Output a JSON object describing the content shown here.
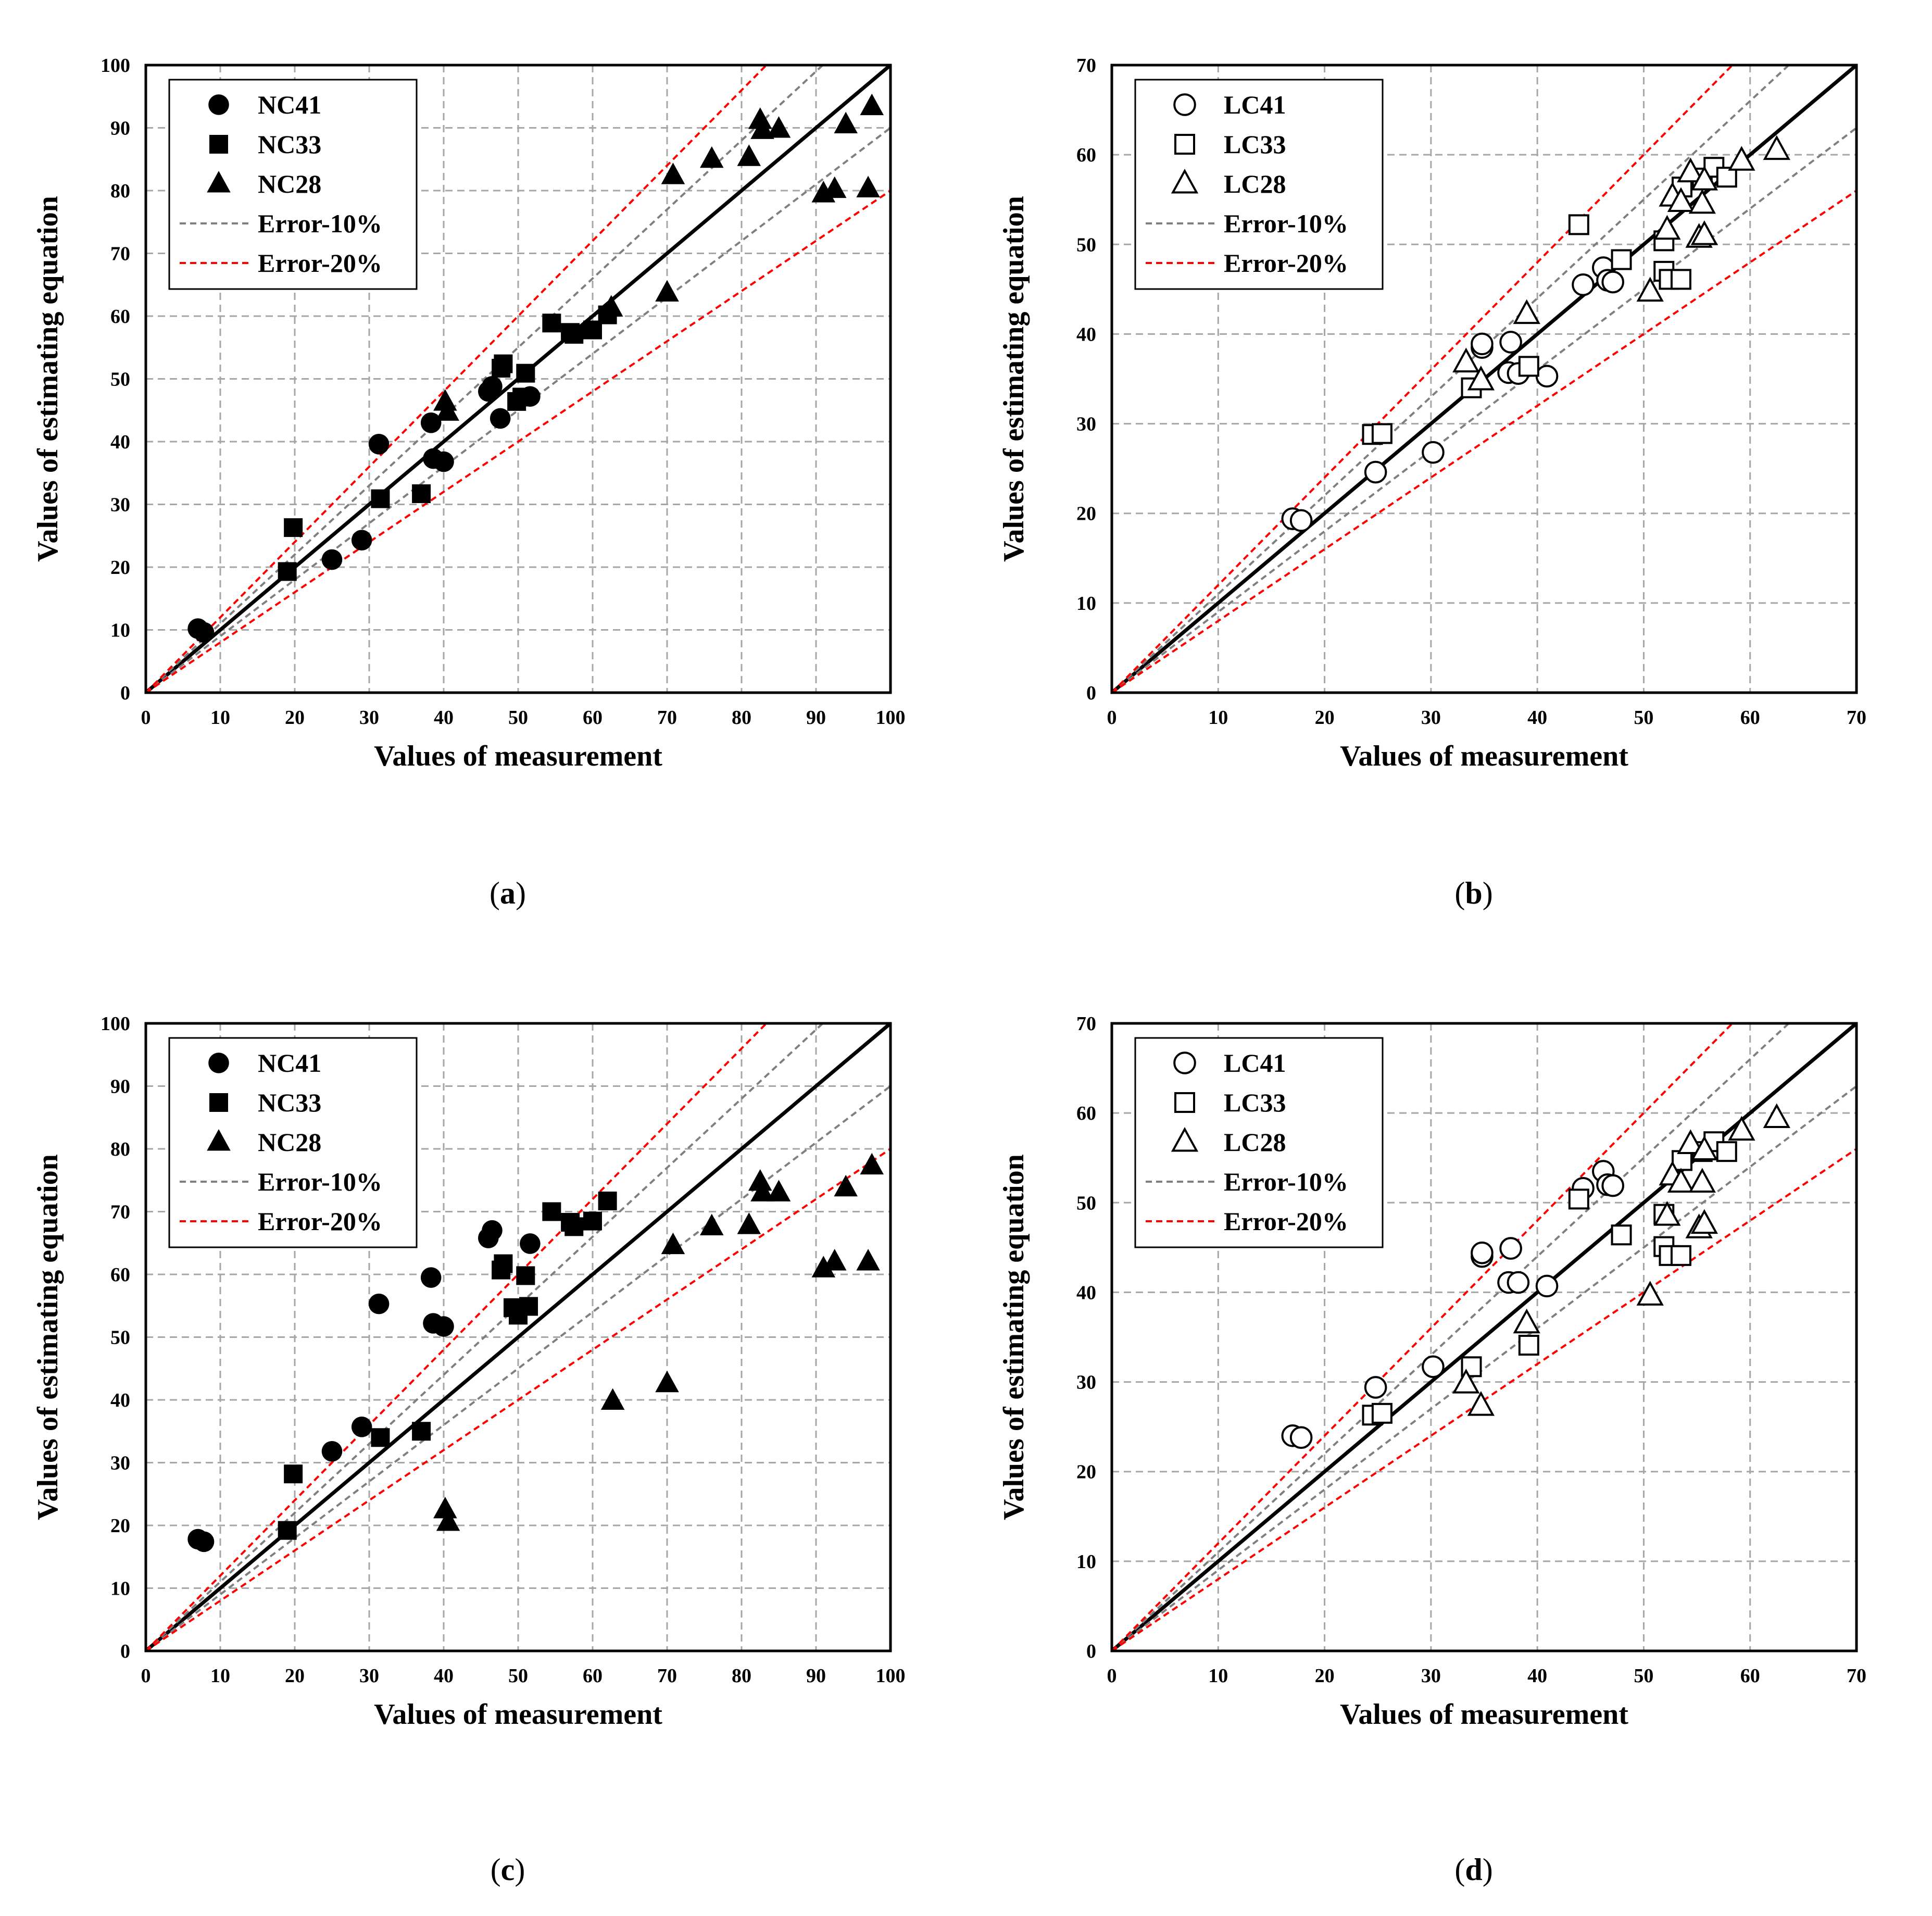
{
  "chart_data": [
    {
      "type": "scatter",
      "panel": "a",
      "caption_open": "(",
      "caption_letter": "a",
      "caption_close": ")",
      "xlabel": "Values of measurement",
      "ylabel": "Values of estimating equation",
      "xlim": [
        0,
        100
      ],
      "ylim": [
        0,
        100
      ],
      "xticks": [
        0,
        10,
        20,
        30,
        40,
        50,
        60,
        70,
        80,
        90,
        100
      ],
      "yticks": [
        0,
        10,
        20,
        30,
        40,
        50,
        60,
        70,
        80,
        90,
        100
      ],
      "grid": true,
      "legend_position": "top-left",
      "reference_lines": [
        {
          "name": "Equality",
          "slope": 1.0,
          "color": "#000000",
          "style": "solid"
        },
        {
          "name": "Error-10%",
          "slopes": [
            1.1,
            0.9
          ],
          "color": "#7f7f7f",
          "style": "dashed"
        },
        {
          "name": "Error-20%",
          "slopes": [
            1.2,
            0.8
          ],
          "color": "#ff0000",
          "style": "dashed"
        }
      ],
      "series": [
        {
          "name": "NC41",
          "marker": "filled-circle",
          "points": [
            [
              7,
              10.2
            ],
            [
              7.8,
              9.6
            ],
            [
              25,
              21.2
            ],
            [
              29,
              24.3
            ],
            [
              31.3,
              39.6
            ],
            [
              38.3,
              43
            ],
            [
              38.6,
              37.3
            ],
            [
              40,
              36.8
            ],
            [
              46,
              48
            ],
            [
              46.5,
              48.8
            ],
            [
              47.6,
              43.7
            ],
            [
              51.6,
              47.2
            ]
          ]
        },
        {
          "name": "NC33",
          "marker": "filled-square",
          "points": [
            [
              19,
              19.3
            ],
            [
              19.8,
              26.3
            ],
            [
              31.5,
              30.9
            ],
            [
              37,
              31.7
            ],
            [
              47.7,
              51.7
            ],
            [
              48,
              52.4
            ],
            [
              49.8,
              46.4
            ],
            [
              51,
              50.9
            ],
            [
              54.5,
              58.9
            ],
            [
              50.5,
              47.1
            ],
            [
              57,
              57.4
            ],
            [
              57.5,
              57.1
            ],
            [
              60,
              57.8
            ],
            [
              62,
              60.2
            ]
          ]
        },
        {
          "name": "NC28",
          "marker": "filled-triangle",
          "points": [
            [
              40.2,
              46.3
            ],
            [
              40.5,
              44.7
            ],
            [
              62.5,
              61.3
            ],
            [
              70,
              63.7
            ],
            [
              70.8,
              82.4
            ],
            [
              76,
              85
            ],
            [
              81,
              85.3
            ],
            [
              82.5,
              91.2
            ],
            [
              82.8,
              89.6
            ],
            [
              85,
              89.8
            ],
            [
              91,
              79.5
            ],
            [
              92.5,
              80.2
            ],
            [
              94,
              90.5
            ],
            [
              97,
              80.3
            ],
            [
              97.5,
              93.4
            ]
          ]
        }
      ]
    },
    {
      "type": "scatter",
      "panel": "b",
      "caption_open": "(",
      "caption_letter": "b",
      "caption_close": ")",
      "xlabel": "Values of measurement",
      "ylabel": "Values of estimating equation",
      "xlim": [
        0,
        70
      ],
      "ylim": [
        0,
        70
      ],
      "xticks": [
        0,
        10,
        20,
        30,
        40,
        50,
        60,
        70
      ],
      "yticks": [
        0,
        10,
        20,
        30,
        40,
        50,
        60,
        70
      ],
      "grid": true,
      "legend_position": "top-left",
      "reference_lines": [
        {
          "name": "Equality",
          "slope": 1.0,
          "color": "#000000",
          "style": "solid"
        },
        {
          "name": "Error-10%",
          "slopes": [
            1.1,
            0.9
          ],
          "color": "#7f7f7f",
          "style": "dashed"
        },
        {
          "name": "Error-20%",
          "slopes": [
            1.2,
            0.8
          ],
          "color": "#ff0000",
          "style": "dashed"
        }
      ],
      "series": [
        {
          "name": "LC41",
          "marker": "open-circle",
          "points": [
            [
              17,
              19.4
            ],
            [
              17.8,
              19.2
            ],
            [
              24.8,
              24.6
            ],
            [
              30.2,
              26.8
            ],
            [
              34.8,
              38.5
            ],
            [
              34.8,
              38.9
            ],
            [
              37.3,
              35.7
            ],
            [
              37.5,
              39.1
            ],
            [
              38.2,
              35.6
            ],
            [
              40.9,
              35.3
            ],
            [
              44.3,
              45.5
            ],
            [
              46.2,
              47.4
            ],
            [
              46.6,
              46
            ],
            [
              47.1,
              45.8
            ]
          ]
        },
        {
          "name": "LC33",
          "marker": "open-square",
          "points": [
            [
              24.5,
              28.8
            ],
            [
              25.4,
              28.9
            ],
            [
              33.8,
              34
            ],
            [
              39.2,
              36.4
            ],
            [
              43.9,
              52.2
            ],
            [
              47.9,
              48.3
            ],
            [
              51.9,
              50.4
            ],
            [
              51.9,
              47
            ],
            [
              52.4,
              46.1
            ],
            [
              53.5,
              46.1
            ],
            [
              53.6,
              56.4
            ],
            [
              55.5,
              57.4
            ],
            [
              56.6,
              58.6
            ],
            [
              57.8,
              57.5
            ]
          ]
        },
        {
          "name": "LC28",
          "marker": "open-triangle",
          "points": [
            [
              33.3,
              36.8
            ],
            [
              34.7,
              34.8
            ],
            [
              39,
              42.2
            ],
            [
              50.6,
              44.7
            ],
            [
              52.2,
              51.6
            ],
            [
              52.7,
              55.3
            ],
            [
              53.5,
              54.7
            ],
            [
              54.4,
              58
            ],
            [
              55.2,
              50.7
            ],
            [
              55.7,
              51
            ],
            [
              55.5,
              54.5
            ],
            [
              55.7,
              57.1
            ],
            [
              59.2,
              59.3
            ],
            [
              62.5,
              60.5
            ]
          ]
        }
      ]
    },
    {
      "type": "scatter",
      "panel": "c",
      "caption_open": "(",
      "caption_letter": "c",
      "caption_close": ")",
      "xlabel": "Values of measurement",
      "ylabel": "Values of estimating equation",
      "xlim": [
        0,
        100
      ],
      "ylim": [
        0,
        100
      ],
      "xticks": [
        0,
        10,
        20,
        30,
        40,
        50,
        60,
        70,
        80,
        90,
        100
      ],
      "yticks": [
        0,
        10,
        20,
        30,
        40,
        50,
        60,
        70,
        80,
        90,
        100
      ],
      "grid": true,
      "legend_position": "top-left",
      "reference_lines": [
        {
          "name": "Equality",
          "slope": 1.0,
          "color": "#000000",
          "style": "solid"
        },
        {
          "name": "Error-10%",
          "slopes": [
            1.1,
            0.9
          ],
          "color": "#7f7f7f",
          "style": "dashed"
        },
        {
          "name": "Error-20%",
          "slopes": [
            1.2,
            0.8
          ],
          "color": "#ff0000",
          "style": "dashed"
        }
      ],
      "series": [
        {
          "name": "NC41",
          "marker": "filled-circle",
          "points": [
            [
              7,
              17.8
            ],
            [
              7.8,
              17.4
            ],
            [
              25,
              31.8
            ],
            [
              29,
              35.7
            ],
            [
              31.3,
              55.3
            ],
            [
              38.3,
              59.5
            ],
            [
              38.6,
              52.2
            ],
            [
              40,
              51.7
            ],
            [
              46,
              65.8
            ],
            [
              46.5,
              67
            ],
            [
              51.6,
              64.9
            ]
          ]
        },
        {
          "name": "NC33",
          "marker": "filled-square",
          "points": [
            [
              19,
              19.2
            ],
            [
              19.8,
              28.2
            ],
            [
              31.5,
              34
            ],
            [
              37,
              35
            ],
            [
              47.7,
              60.7
            ],
            [
              48,
              61.7
            ],
            [
              49.3,
              54.7
            ],
            [
              50,
              53.5
            ],
            [
              51,
              59.8
            ],
            [
              51.4,
              54.9
            ],
            [
              54.5,
              70
            ],
            [
              57,
              68.3
            ],
            [
              57.5,
              67.6
            ],
            [
              60,
              68.5
            ],
            [
              62,
              71.7
            ]
          ]
        },
        {
          "name": "NC28",
          "marker": "filled-triangle",
          "points": [
            [
              40.2,
              22.5
            ],
            [
              40.6,
              20.5
            ],
            [
              62.7,
              39.8
            ],
            [
              70,
              42.6
            ],
            [
              70.8,
              64.6
            ],
            [
              76,
              67.6
            ],
            [
              81,
              67.8
            ],
            [
              82.5,
              74.7
            ],
            [
              82.8,
              73
            ],
            [
              85,
              73
            ],
            [
              91,
              60.9
            ],
            [
              92.5,
              62
            ],
            [
              94,
              73.8
            ],
            [
              97,
              62
            ],
            [
              97.5,
              77.3
            ]
          ]
        }
      ]
    },
    {
      "type": "scatter",
      "panel": "d",
      "caption_open": "(",
      "caption_letter": "d",
      "caption_close": ")",
      "xlabel": "Values of measurement",
      "ylabel": "Values of estimating equation",
      "xlim": [
        0,
        70
      ],
      "ylim": [
        0,
        70
      ],
      "xticks": [
        0,
        10,
        20,
        30,
        40,
        50,
        60,
        70
      ],
      "yticks": [
        0,
        10,
        20,
        30,
        40,
        50,
        60,
        70
      ],
      "grid": true,
      "legend_position": "top-left",
      "reference_lines": [
        {
          "name": "Equality",
          "slope": 1.0,
          "color": "#000000",
          "style": "solid"
        },
        {
          "name": "Error-10%",
          "slopes": [
            1.1,
            0.9
          ],
          "color": "#7f7f7f",
          "style": "dashed"
        },
        {
          "name": "Error-20%",
          "slopes": [
            1.2,
            0.8
          ],
          "color": "#ff0000",
          "style": "dashed"
        }
      ],
      "series": [
        {
          "name": "LC41",
          "marker": "open-circle",
          "points": [
            [
              17,
              24
            ],
            [
              17.8,
              23.8
            ],
            [
              24.8,
              29.4
            ],
            [
              30.2,
              31.7
            ],
            [
              34.8,
              44
            ],
            [
              34.8,
              44.4
            ],
            [
              37.3,
              41.1
            ],
            [
              37.5,
              44.9
            ],
            [
              38.2,
              41.1
            ],
            [
              40.9,
              40.7
            ],
            [
              44.3,
              51.6
            ],
            [
              46.2,
              53.5
            ],
            [
              46.6,
              52
            ],
            [
              47.1,
              51.9
            ]
          ]
        },
        {
          "name": "LC33",
          "marker": "open-square",
          "points": [
            [
              24.5,
              26.3
            ],
            [
              25.4,
              26.5
            ],
            [
              33.8,
              31.7
            ],
            [
              39.2,
              34.1
            ],
            [
              43.9,
              50.4
            ],
            [
              47.9,
              46.4
            ],
            [
              51.9,
              48.7
            ],
            [
              51.9,
              45.1
            ],
            [
              52.4,
              44.1
            ],
            [
              53.5,
              44.1
            ],
            [
              53.6,
              54.7
            ],
            [
              55.5,
              55.7
            ],
            [
              56.6,
              56.8
            ],
            [
              57.8,
              55.7
            ]
          ]
        },
        {
          "name": "LC28",
          "marker": "open-triangle",
          "points": [
            [
              33.3,
              29.8
            ],
            [
              34.7,
              27.3
            ],
            [
              39,
              36.5
            ],
            [
              50.6,
              39.6
            ],
            [
              52.2,
              48.5
            ],
            [
              52.7,
              53
            ],
            [
              53.5,
              52.2
            ],
            [
              54.4,
              56.5
            ],
            [
              55.2,
              47.1
            ],
            [
              55.7,
              47.6
            ],
            [
              55.5,
              52.2
            ],
            [
              55.7,
              55.8
            ],
            [
              59.2,
              58
            ],
            [
              62.5,
              59.4
            ]
          ]
        }
      ]
    }
  ],
  "legend": [
    {
      "series": "NC41/LC41"
    },
    {
      "series": "NC33/LC33"
    },
    {
      "series": "NC28/LC28"
    },
    {
      "line": "Error-10%"
    },
    {
      "line": "Error-20%"
    }
  ],
  "colors": {
    "equality": "#000000",
    "error10": "#7f7f7f",
    "error20": "#ff0000",
    "grid": "#a6a6a6",
    "marker": "#000000"
  }
}
